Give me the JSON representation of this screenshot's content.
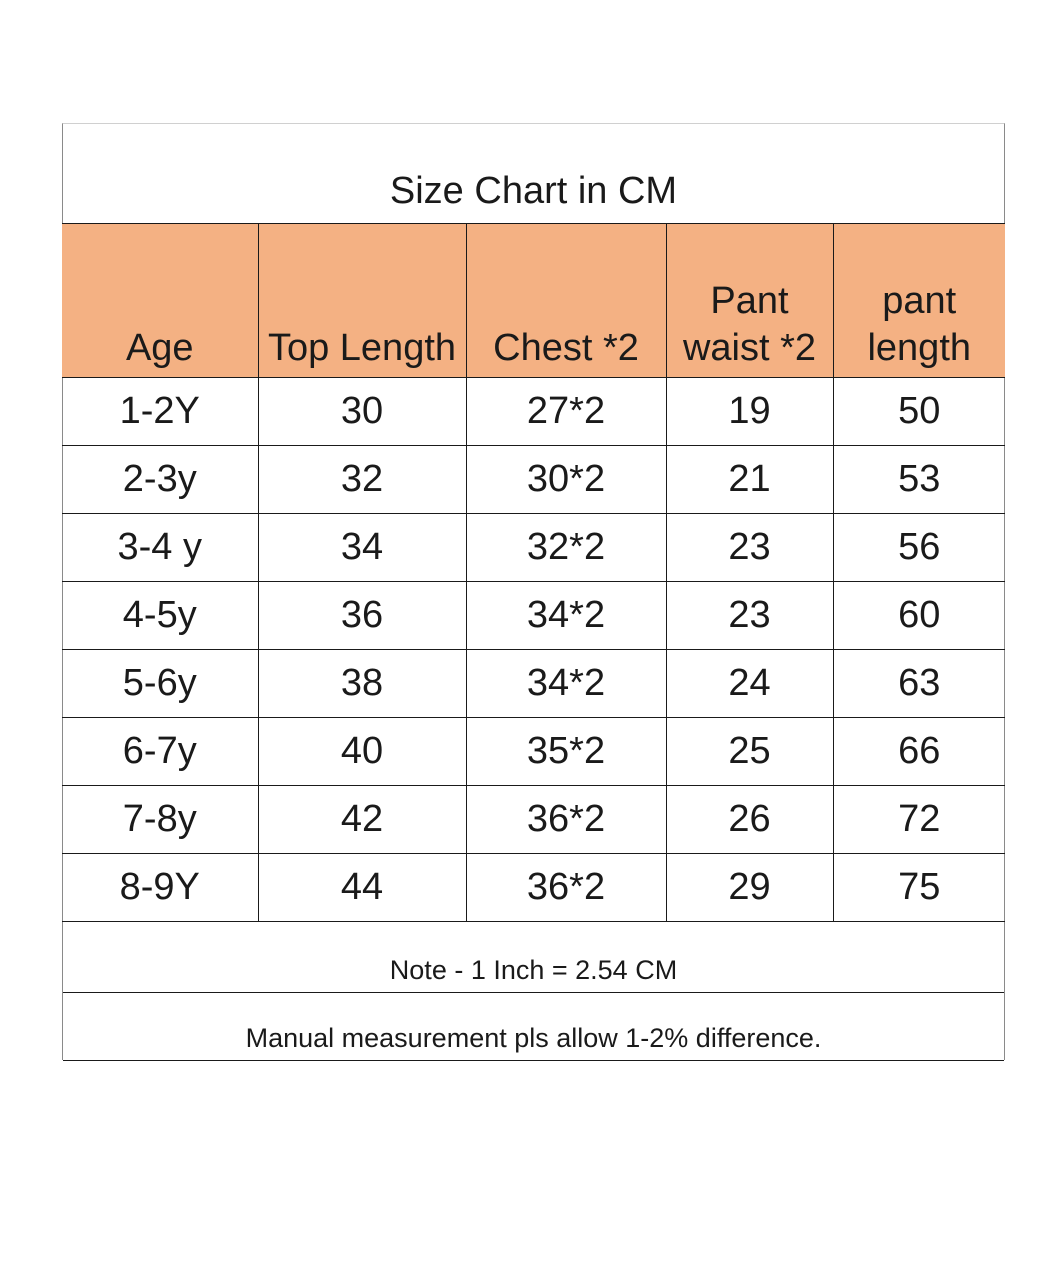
{
  "title": "Size Chart in CM",
  "columns": [
    "Age",
    "Top Length",
    "Chest *2",
    "Pant\nwaist *2",
    "pant\nlength"
  ],
  "rows": [
    [
      "1-2Y",
      "30",
      "27*2",
      "19",
      "50"
    ],
    [
      "2-3y",
      "32",
      "30*2",
      "21",
      "53"
    ],
    [
      "3-4 y",
      "34",
      "32*2",
      "23",
      "56"
    ],
    [
      "4-5y",
      "36",
      "34*2",
      "23",
      "60"
    ],
    [
      "5-6y",
      "38",
      "34*2",
      "24",
      "63"
    ],
    [
      "6-7y",
      "40",
      "35*2",
      "25",
      "66"
    ],
    [
      "7-8y",
      "42",
      "36*2",
      "26",
      "72"
    ],
    [
      "8-9Y",
      "44",
      "36*2",
      "29",
      "75"
    ]
  ],
  "notes": {
    "conversion": "Note - 1 Inch = 2.54 CM",
    "tolerance": "Manual measurement pls allow 1-2% difference."
  },
  "colors": {
    "header_background": "#f4b183",
    "border": "#1a1a1a",
    "text": "#1a1a1a"
  }
}
